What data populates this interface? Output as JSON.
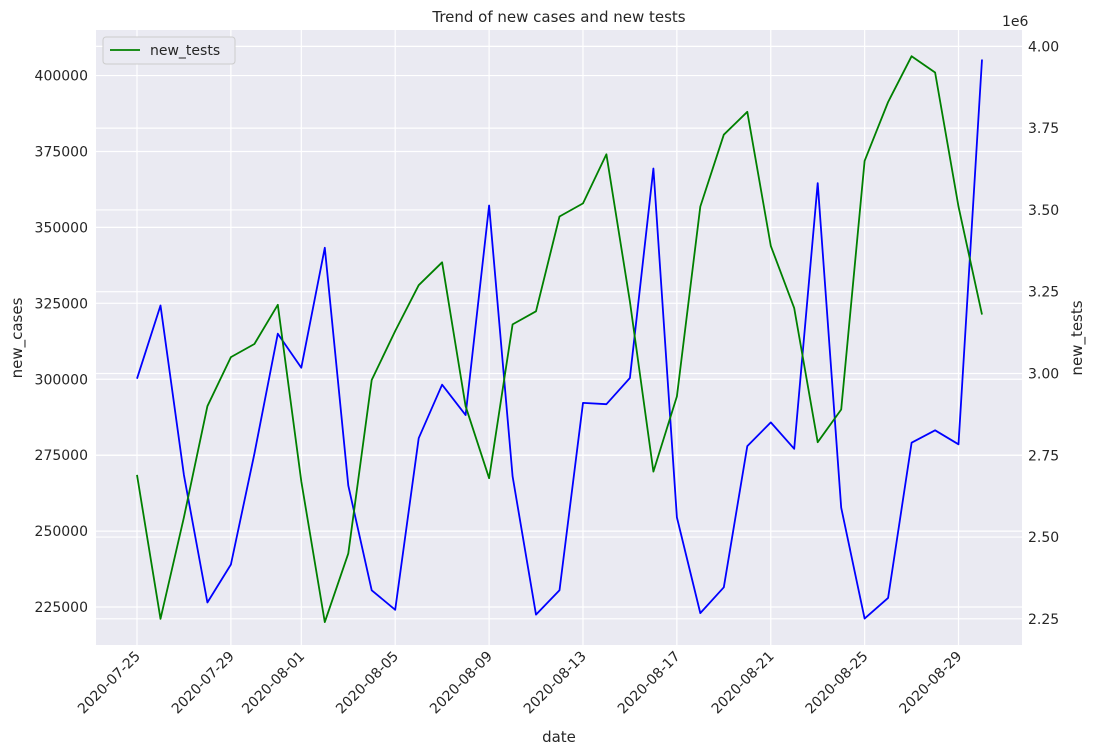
{
  "chart_data": {
    "type": "line",
    "title": "Trend of new cases and new tests",
    "xlabel": "date",
    "ylabel_left": "new_cases",
    "ylabel_right": "new_tests",
    "right_axis_multiplier": "1e6",
    "x": [
      "2020-07-25",
      "2020-07-26",
      "2020-07-27",
      "2020-07-28",
      "2020-07-29",
      "2020-07-30",
      "2020-07-31",
      "2020-08-01",
      "2020-08-02",
      "2020-08-03",
      "2020-08-04",
      "2020-08-05",
      "2020-08-06",
      "2020-08-07",
      "2020-08-08",
      "2020-08-09",
      "2020-08-10",
      "2020-08-11",
      "2020-08-12",
      "2020-08-13",
      "2020-08-14",
      "2020-08-15",
      "2020-08-16",
      "2020-08-17",
      "2020-08-18",
      "2020-08-19",
      "2020-08-20",
      "2020-08-21",
      "2020-08-22",
      "2020-08-23",
      "2020-08-24",
      "2020-08-25",
      "2020-08-26",
      "2020-08-27",
      "2020-08-28",
      "2020-08-29",
      "2020-08-30"
    ],
    "x_tick_labels": [
      "2020-07-25",
      "2020-07-29",
      "2020-08-01",
      "2020-08-05",
      "2020-08-09",
      "2020-08-13",
      "2020-08-17",
      "2020-08-21",
      "2020-08-25",
      "2020-08-29"
    ],
    "ylim_left": [
      212500,
      415000
    ],
    "yticks_left": [
      225000,
      250000,
      275000,
      300000,
      325000,
      350000,
      375000,
      400000
    ],
    "ylim_right": [
      2.17,
      4.05
    ],
    "yticks_right": [
      2.25,
      2.5,
      2.75,
      3.0,
      3.25,
      3.5,
      3.75,
      4.0
    ],
    "grid": true,
    "legend_position": "upper-left",
    "series": [
      {
        "name": "",
        "axis": "left",
        "color": "#0000ff",
        "values": [
          300200,
          324300,
          268500,
          226500,
          239000,
          275500,
          315000,
          303800,
          343300,
          265000,
          230500,
          224100,
          280600,
          298200,
          288200,
          357200,
          268000,
          222500,
          230500,
          292200,
          291800,
          300400,
          369400,
          254500,
          223000,
          231500,
          278000,
          285800,
          277100,
          364600,
          257700,
          221200,
          228000,
          279100,
          283200,
          278600,
          405300
        ]
      },
      {
        "name": "new_tests",
        "axis": "right",
        "color": "#008000",
        "values": [
          2.69,
          2.25,
          2.56,
          2.9,
          3.05,
          3.09,
          3.21,
          2.67,
          2.24,
          2.45,
          2.98,
          3.13,
          3.27,
          3.34,
          2.9,
          2.68,
          3.15,
          3.19,
          3.48,
          3.52,
          3.67,
          3.22,
          2.7,
          2.93,
          3.51,
          3.73,
          3.8,
          3.39,
          3.2,
          2.79,
          2.89,
          3.65,
          3.83,
          3.97,
          3.92,
          3.51,
          3.18
        ]
      }
    ]
  }
}
